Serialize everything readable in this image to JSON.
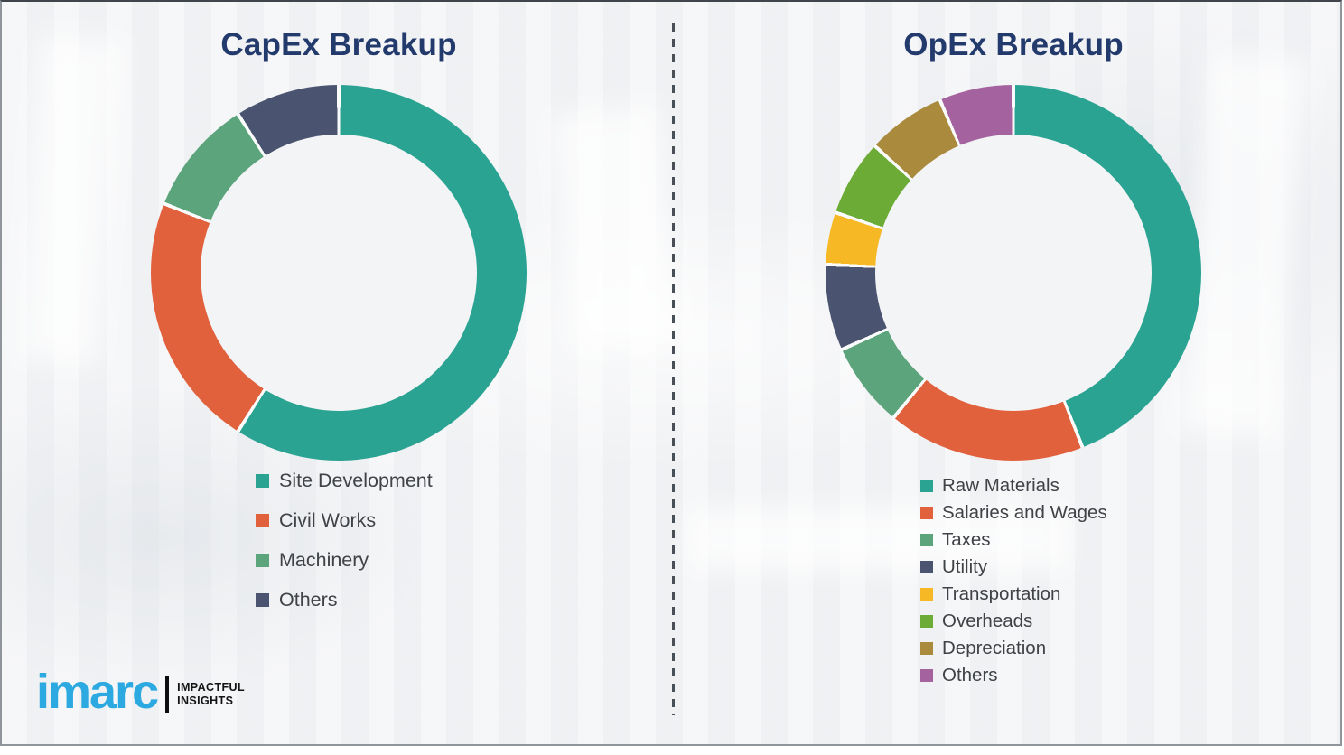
{
  "page": {
    "background_color": "#f2f3f5",
    "frame_border_color": "#8f959b",
    "divider_color": "#494f57",
    "title_color": "#233a6d",
    "legend_text_color": "#3f4246",
    "segment_gap_color": "#fafbfb"
  },
  "chart_data": [
    {
      "type": "pie",
      "variant": "donut",
      "title": "CapEx Breakup",
      "labels": [
        "Site Development",
        "Civil Works",
        "Machinery",
        "Others"
      ],
      "values": [
        59,
        22,
        10,
        9
      ],
      "colors": [
        "#2aa392",
        "#e2613d",
        "#5ba47c",
        "#4a536f"
      ],
      "start_angle_deg": 0,
      "direction": "clockwise",
      "donut_hole_ratio": 0.735,
      "legend_position": "below-left",
      "value_labels_shown": false,
      "values_note": "percent of ring, estimated from arc angles (no numeric labels in figure)"
    },
    {
      "type": "pie",
      "variant": "donut",
      "title": "OpEx Breakup",
      "labels": [
        "Raw Materials",
        "Salaries and Wages",
        "Taxes",
        "Utility",
        "Transportation",
        "Overheads",
        "Depreciation",
        "Others"
      ],
      "values": [
        44,
        17,
        7.3,
        7.4,
        4.5,
        6.6,
        6.8,
        6.4
      ],
      "colors": [
        "#2aa392",
        "#e2613d",
        "#5ba47c",
        "#4a536f",
        "#f6b824",
        "#6cab35",
        "#aa8b3d",
        "#a4639f"
      ],
      "start_angle_deg": 0,
      "direction": "clockwise",
      "donut_hole_ratio": 0.735,
      "legend_position": "below-left",
      "value_labels_shown": false,
      "values_note": "percent of ring, estimated from arc angles (no numeric labels in figure)"
    }
  ],
  "logo": {
    "brand": "imarc",
    "brand_color": "#2ba9e0",
    "tagline": [
      "IMPACTFUL",
      "INSIGHTS"
    ]
  }
}
